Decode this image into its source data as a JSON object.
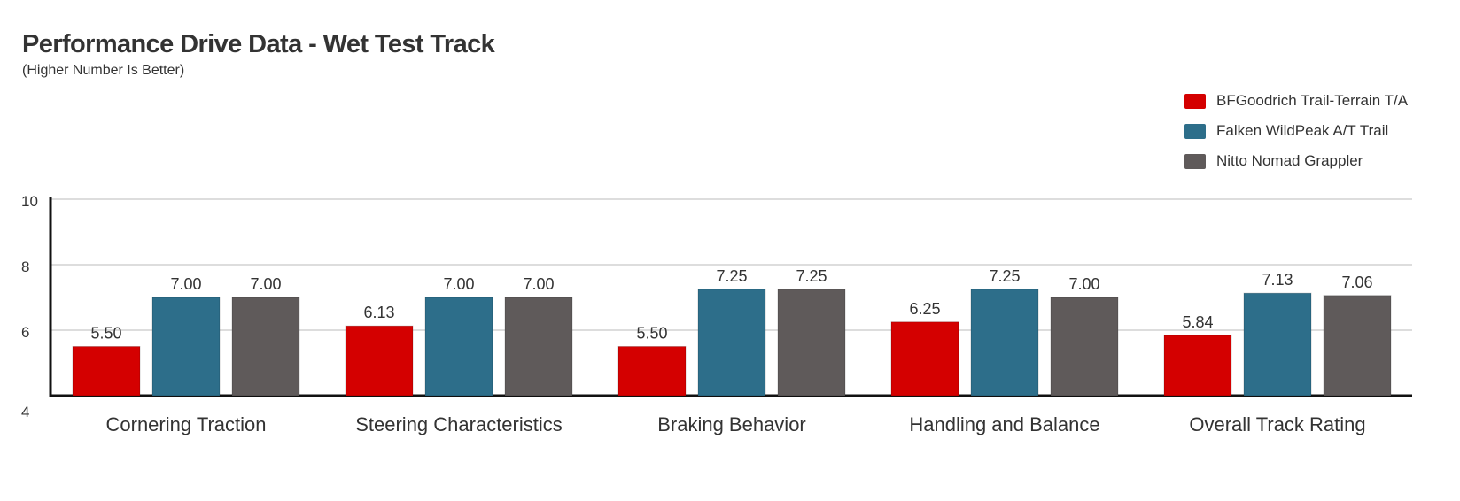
{
  "title": "Performance Drive Data - Wet Test Track",
  "subtitle": "(Higher Number Is Better)",
  "chart_data": {
    "type": "bar",
    "title": "Performance Drive Data - Wet Test Track",
    "subtitle": "(Higher Number Is Better)",
    "categories": [
      "Cornering Traction",
      "Steering Characteristics",
      "Braking Behavior",
      "Handling and Balance",
      "Overall Track Rating"
    ],
    "series": [
      {
        "name": "BFGoodrich Trail-Terrain T/A",
        "color": "#d40000",
        "values": [
          5.5,
          6.13,
          5.5,
          6.25,
          5.84
        ],
        "labels": [
          "5.50",
          "6.13",
          "5.50",
          "6.25",
          "5.84"
        ]
      },
      {
        "name": "Falken WildPeak A/T Trail",
        "color": "#2d6e8a",
        "values": [
          7.0,
          7.0,
          7.25,
          7.25,
          7.13
        ],
        "labels": [
          "7.00",
          "7.00",
          "7.25",
          "7.25",
          "7.13"
        ]
      },
      {
        "name": "Nitto Nomad Grappler",
        "color": "#5f5a5a",
        "values": [
          7.0,
          7.0,
          7.25,
          7.0,
          7.06
        ],
        "labels": [
          "7.00",
          "7.00",
          "7.25",
          "7.00",
          "7.06"
        ]
      }
    ],
    "ylim": [
      4,
      10
    ],
    "yticks": [
      "4",
      "6",
      "8",
      "10"
    ],
    "grid": true,
    "legend_position": "top-right"
  }
}
